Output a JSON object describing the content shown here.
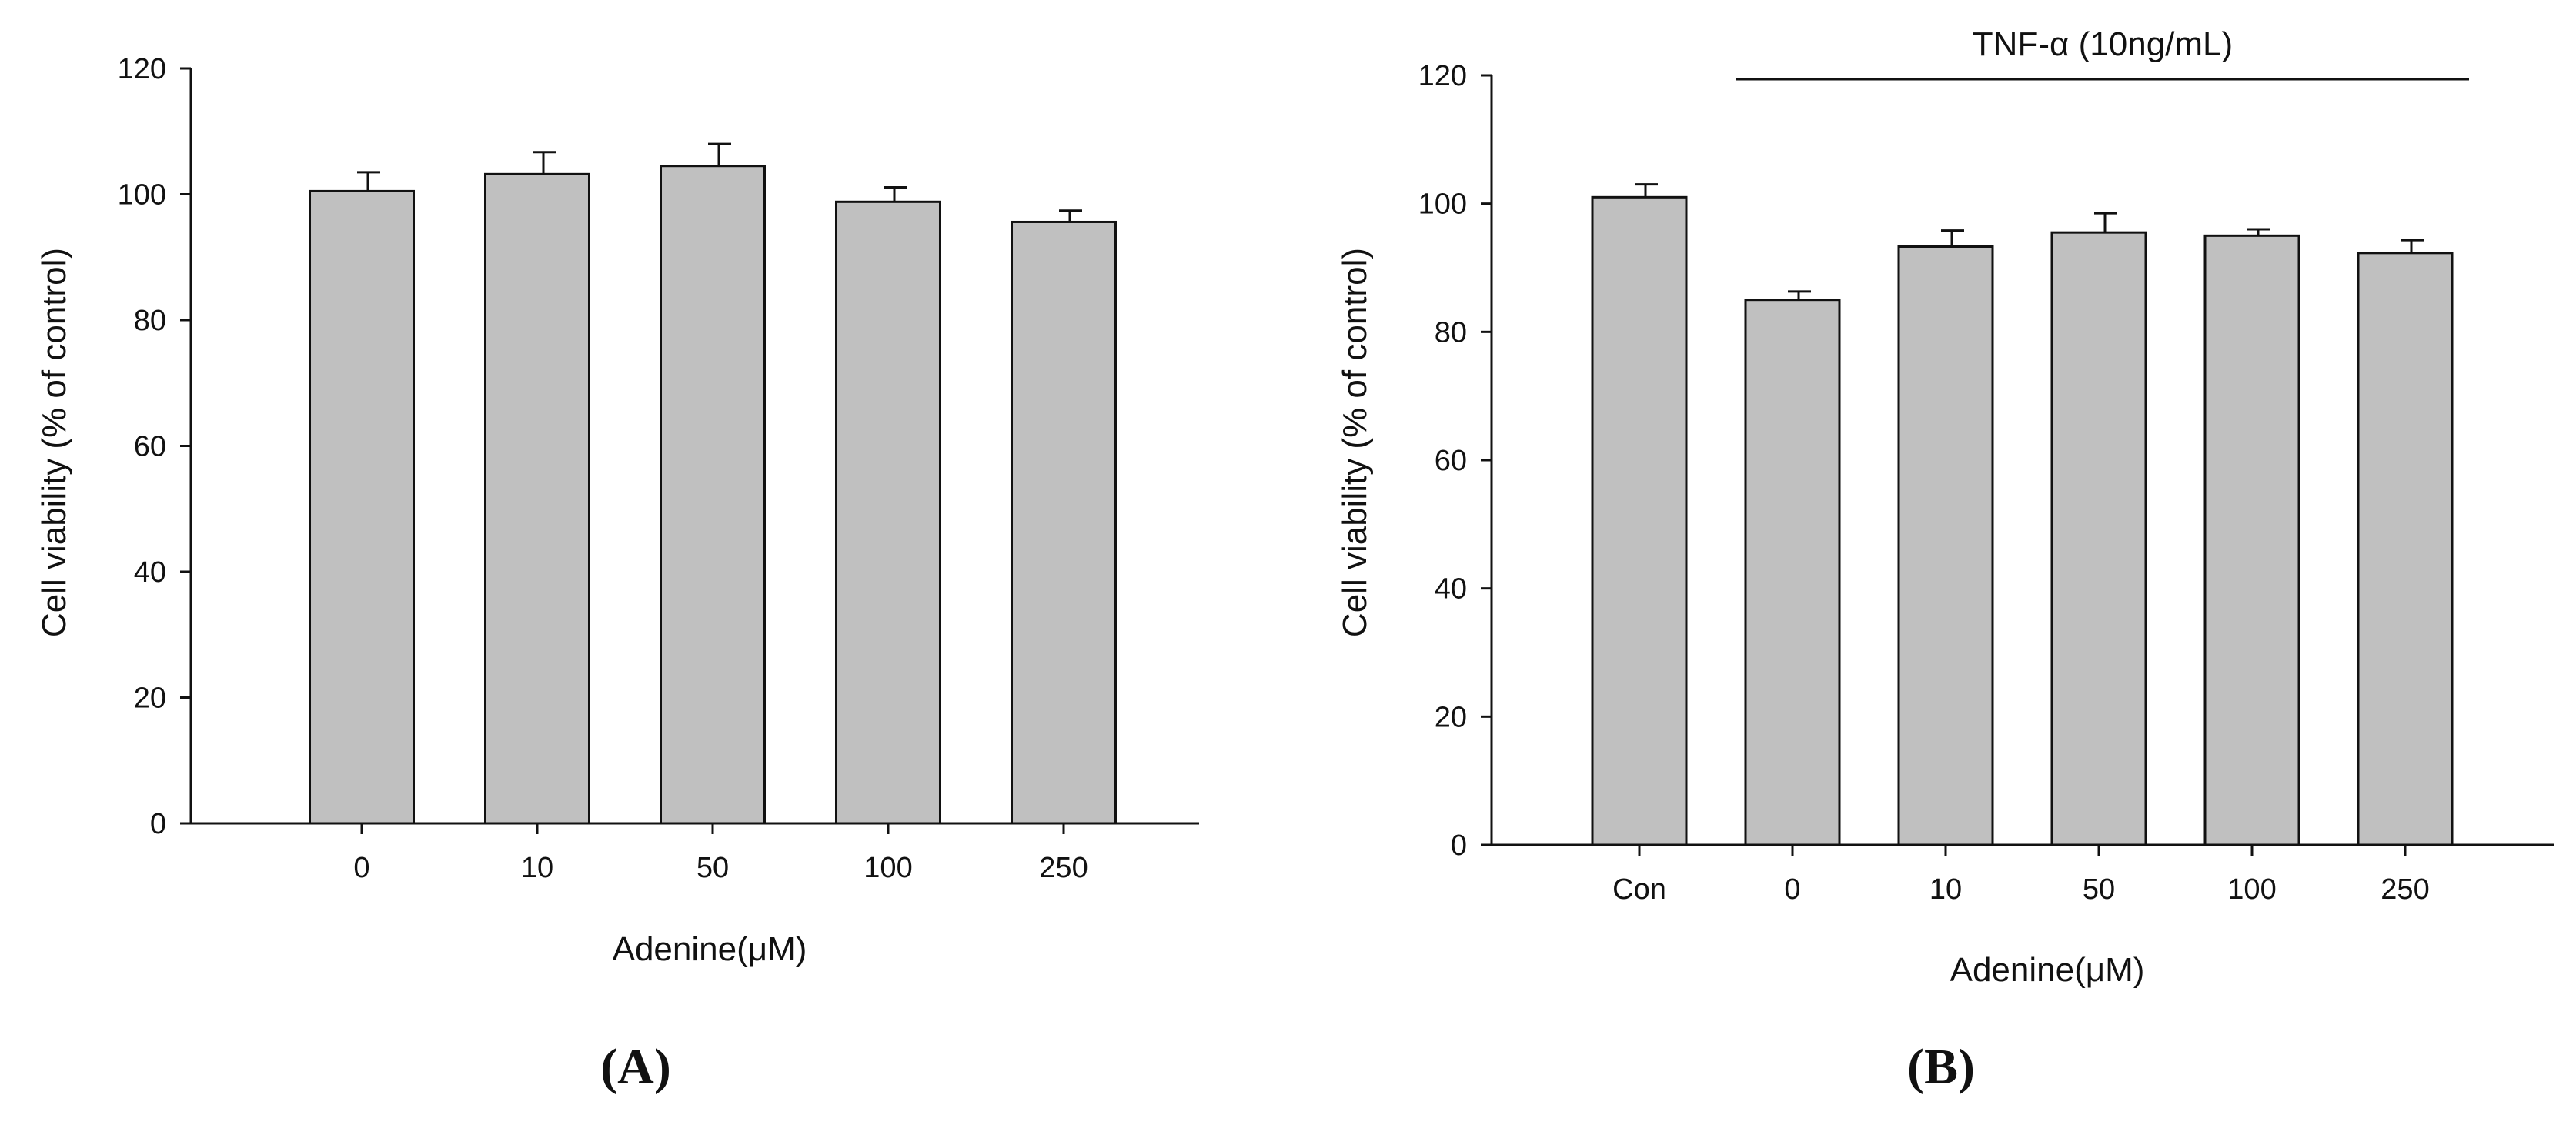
{
  "chart_data": [
    {
      "type": "bar",
      "panel_label": "A",
      "title": "",
      "xlabel": "Adenine(μM)",
      "ylabel": "Cell viability (% of control)",
      "ylim": [
        0,
        120
      ],
      "yticks": [
        0,
        20,
        40,
        60,
        80,
        100,
        120
      ],
      "categories": [
        "0",
        "10",
        "50",
        "100",
        "250"
      ],
      "values": [
        100.5,
        103.2,
        104.5,
        98.8,
        95.6
      ],
      "errors": [
        3.0,
        3.5,
        3.5,
        2.3,
        1.8
      ],
      "bar_color": "#c0c0c0",
      "grid": false
    },
    {
      "type": "bar",
      "panel_label": "B",
      "title": "",
      "annotation": "TNF-α (10ng/mL)",
      "xlabel": "Adenine(μM)",
      "ylabel": "Cell viability (% of control)",
      "ylim": [
        0,
        120
      ],
      "yticks": [
        0,
        20,
        40,
        60,
        80,
        100,
        120
      ],
      "categories": [
        "Con",
        "0",
        "10",
        "50",
        "100",
        "250"
      ],
      "values": [
        101.0,
        85.0,
        93.3,
        95.5,
        95.0,
        92.3
      ],
      "errors": [
        2.0,
        1.3,
        2.5,
        3.0,
        1.0,
        2.0
      ],
      "bar_color": "#c0c0c0",
      "grid": false
    }
  ]
}
